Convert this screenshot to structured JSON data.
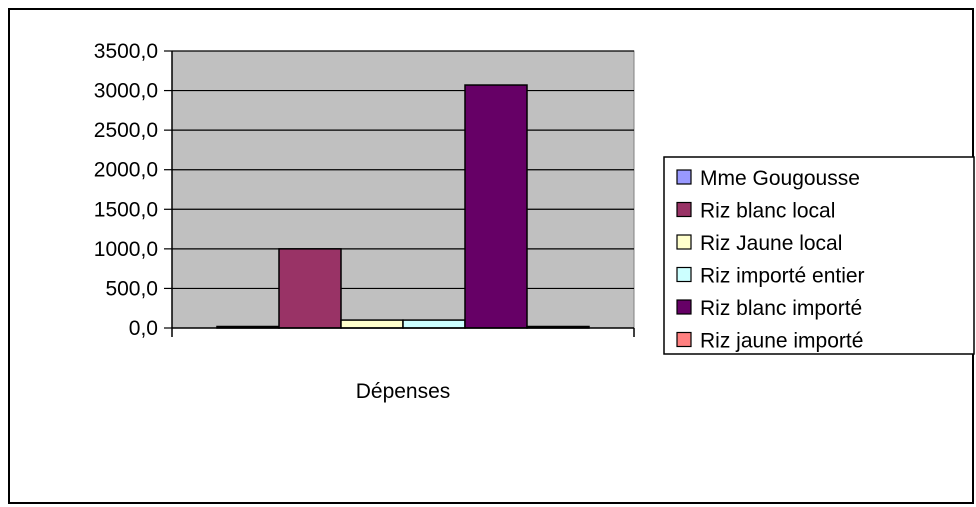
{
  "chart_data": {
    "type": "bar",
    "title": "",
    "xlabel": "",
    "ylabel": "",
    "categories": [
      "Dépenses"
    ],
    "ylim": [
      0,
      3500
    ],
    "ytick_step": 500,
    "ytick_labels": [
      "0,0",
      "500,0",
      "1000,0",
      "1500,0",
      "2000,0",
      "2500,0",
      "3000,0",
      "3500,0"
    ],
    "grid": true,
    "legend_position": "right",
    "plot_background": "#c0c0c0",
    "series": [
      {
        "name": "Mme Gougousse",
        "values": [
          0
        ],
        "color": "#9999ff"
      },
      {
        "name": "Riz blanc local",
        "values": [
          1000
        ],
        "color": "#993366"
      },
      {
        "name": "Riz Jaune local",
        "values": [
          100
        ],
        "color": "#ffffcc"
      },
      {
        "name": "Riz importé entier",
        "values": [
          100
        ],
        "color": "#ccffff"
      },
      {
        "name": "Riz blanc importé",
        "values": [
          3070
        ],
        "color": "#660066"
      },
      {
        "name": "Riz jaune importé",
        "values": [
          0
        ],
        "color": "#ff8080"
      }
    ]
  }
}
